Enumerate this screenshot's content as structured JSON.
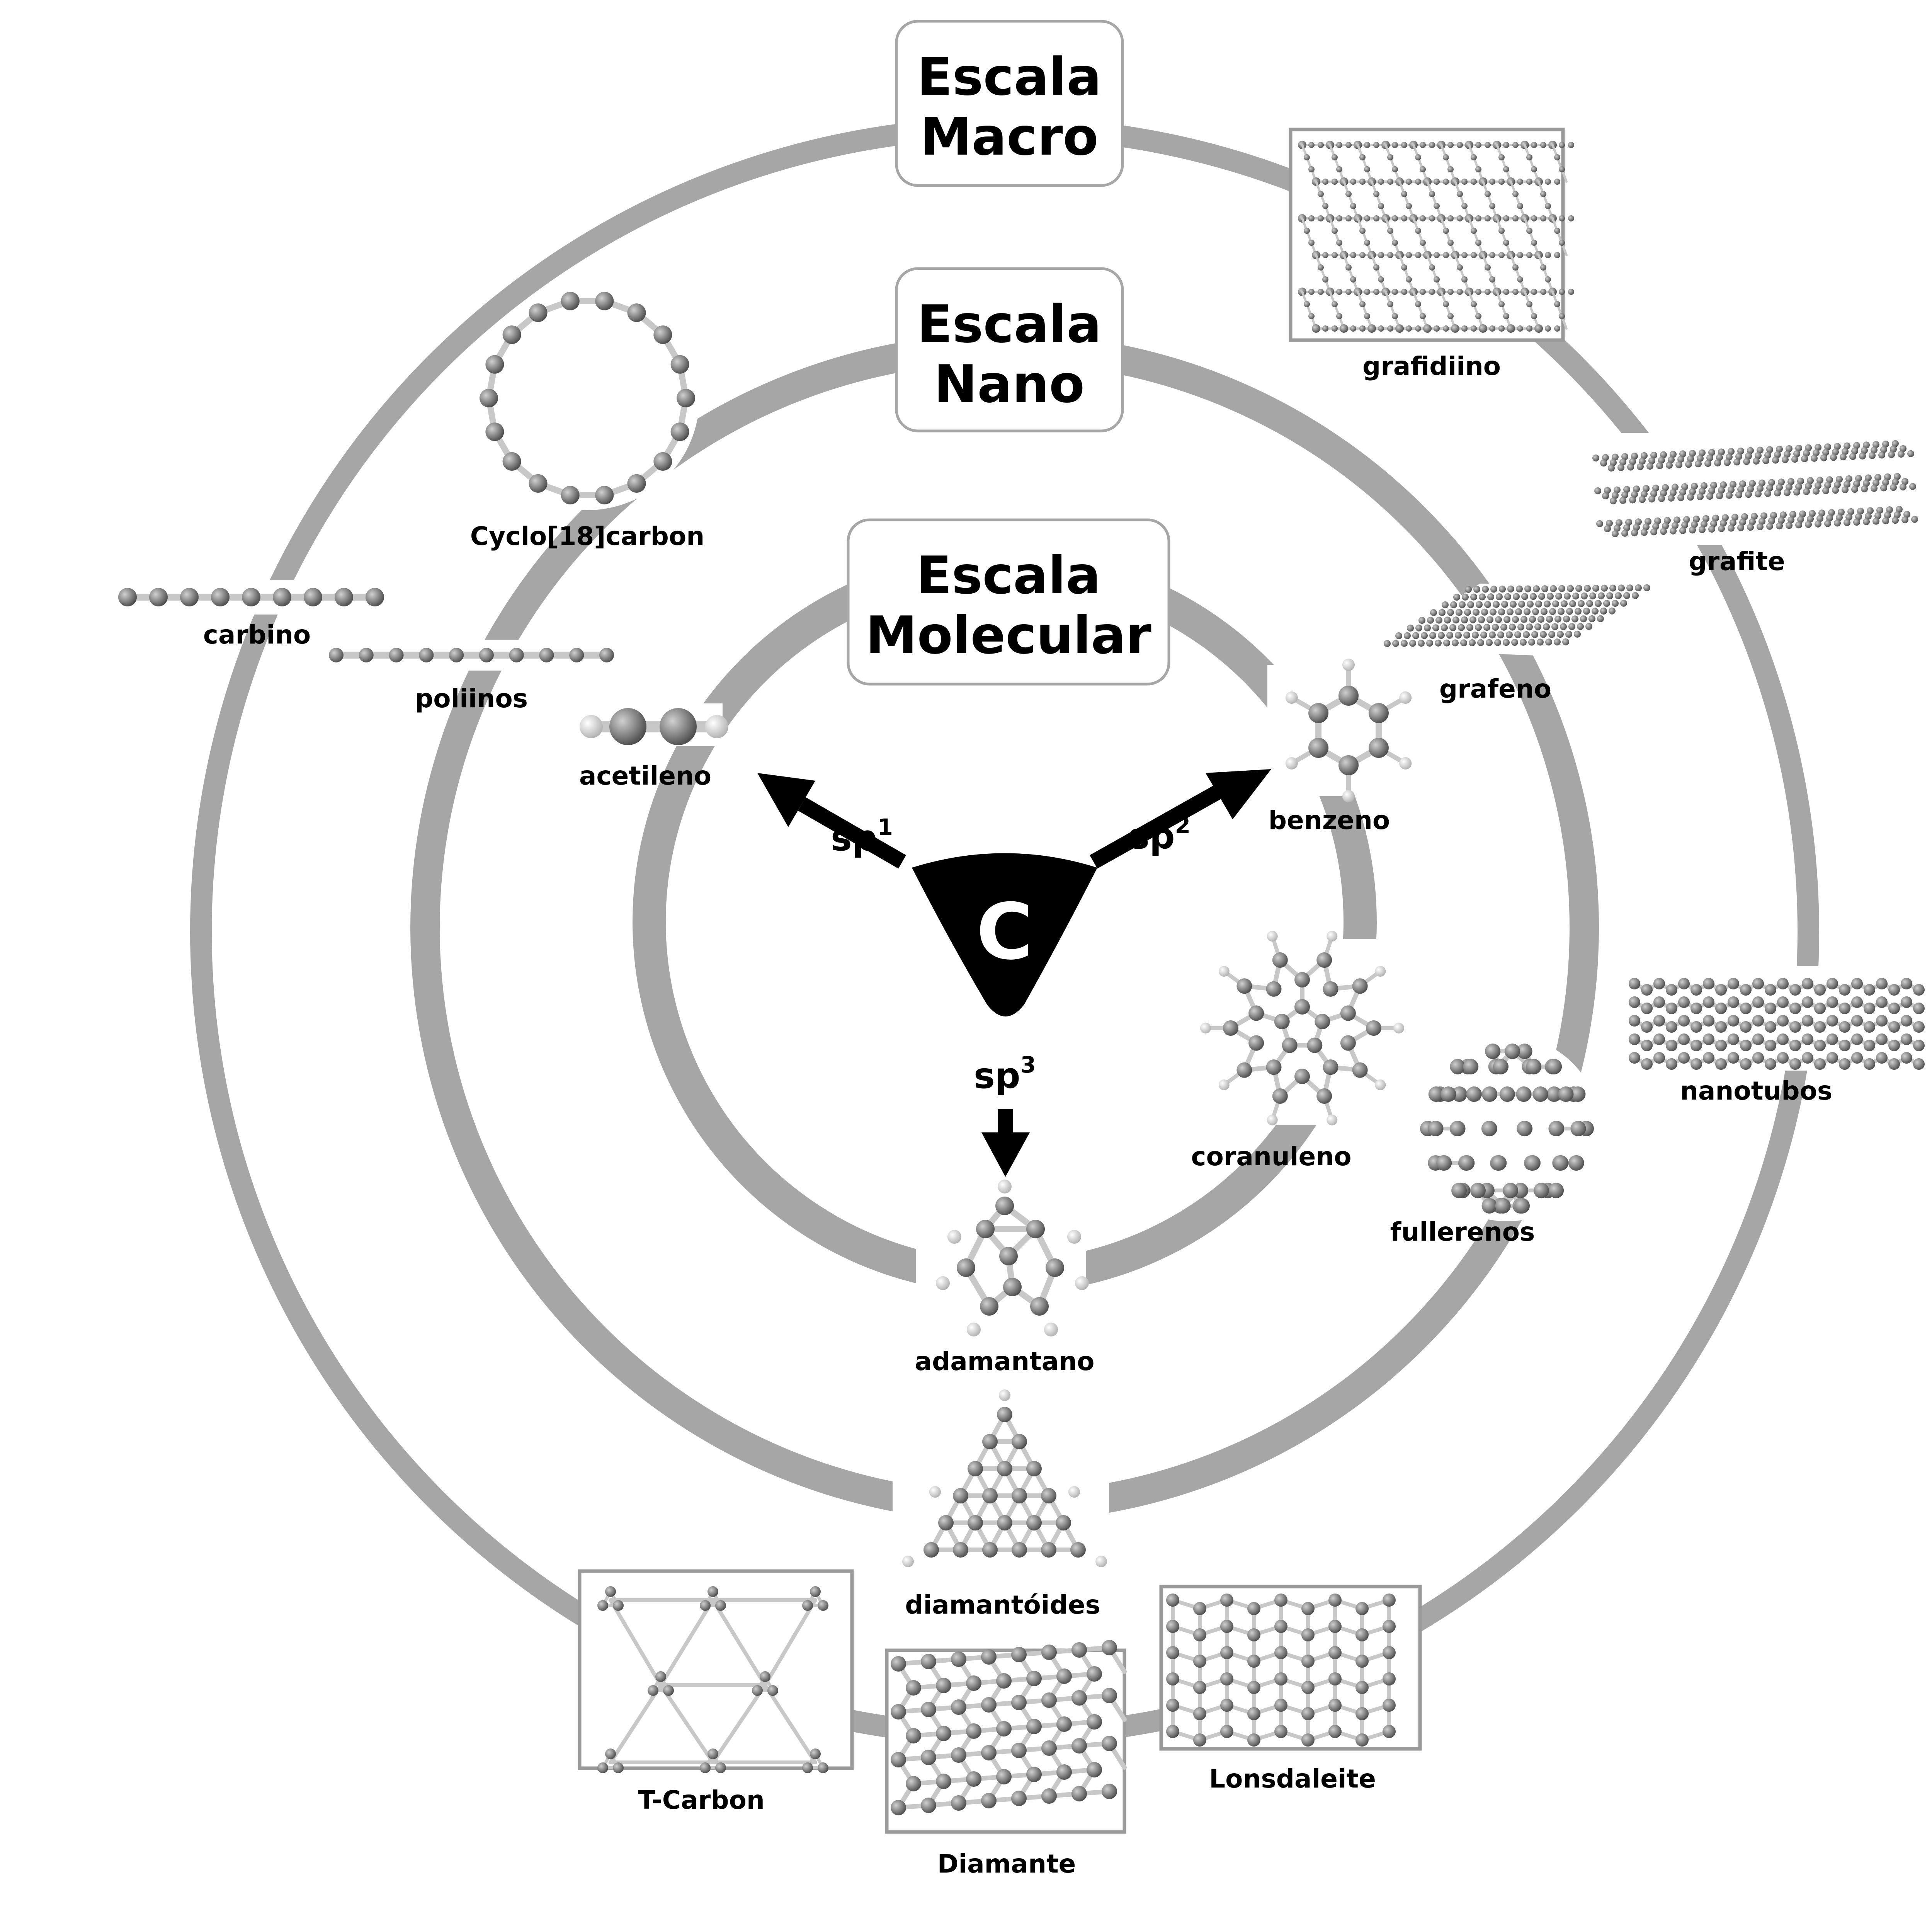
{
  "scales": {
    "macro": {
      "line1": "Escala",
      "line2": "Macro"
    },
    "nano": {
      "line1": "Escala",
      "line2": "Nano"
    },
    "molecular": {
      "line1": "Escala",
      "line2": "Molecular"
    }
  },
  "center": {
    "symbol": "C",
    "sp1": {
      "base": "sp",
      "sup": "1"
    },
    "sp2": {
      "base": "sp",
      "sup": "2"
    },
    "sp3": {
      "base": "sp",
      "sup": "3"
    }
  },
  "labels": {
    "grafidiino": "grafidiino",
    "grafite": "grafite",
    "cyclo": "Cyclo[18]carbon",
    "carbino": "carbino",
    "poliinos": "poliinos",
    "acetileno": "acetileno",
    "benzeno": "benzeno",
    "grafeno": "grafeno",
    "nanotubos": "nanotubos",
    "coranuleno": "coranuleno",
    "fullerenos": "fullerenos",
    "adamantano": "adamantano",
    "diamantoides": "diamantóides",
    "tcarbon": "T-Carbon",
    "diamante": "Diamante",
    "lonsdaleite": "Lonsdaleite"
  },
  "colors": {
    "ring": "#a6a6a6",
    "atom": "#707070",
    "bond": "#c8c8c8",
    "hydrogen": "#e6e6e6",
    "frame": "#9a9a9a"
  }
}
